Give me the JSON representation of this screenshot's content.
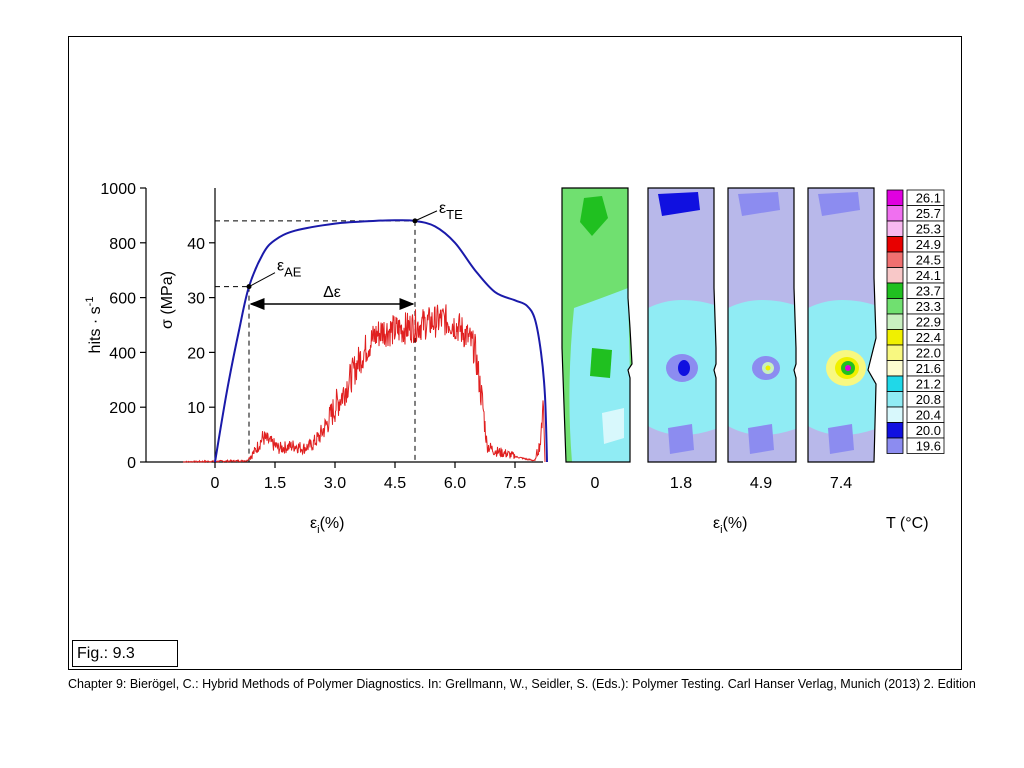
{
  "figure_label": "Fig.: 9.3",
  "caption": "Chapter 9: Bierögel, C.: Hybrid Methods of Polymer Diagnostics. In: Grellmann, W., Seidler, S. (Eds.): Polymer Testing. Carl Hanser Verlag, Munich (2013) 2. Edition",
  "chart_data": [
    {
      "type": "line",
      "x_axis": {
        "label_main": "ε",
        "label_sub": "i",
        "label_tail": "(%)",
        "ticks": [
          "0",
          "1.5",
          "3.0",
          "4.5",
          "6.0",
          "7.5"
        ],
        "range": [
          -1.5,
          8.0
        ]
      },
      "y_left": {
        "label": "hits · s",
        "label_sup": "-1",
        "ticks": [
          "0",
          "200",
          "400",
          "600",
          "800",
          "1000"
        ],
        "range": [
          0,
          1000
        ]
      },
      "y_inner": {
        "label": "σ (MPa)",
        "ticks": [
          "10",
          "20",
          "30",
          "40"
        ],
        "range": [
          0,
          50
        ]
      },
      "annotations": {
        "eps_ae": {
          "main": "ε",
          "sub": "AE",
          "x": 0.85,
          "y_mpa": 32
        },
        "eps_te": {
          "main": "ε",
          "sub": "TE",
          "x": 5.0,
          "y_mpa": 44
        },
        "delta_eps": "Δε"
      },
      "series": [
        {
          "axis": "sigma_mpa",
          "color": "#1a1aaa",
          "points": [
            [
              0,
              0
            ],
            [
              0.3,
              13
            ],
            [
              0.6,
              24
            ],
            [
              0.85,
              32
            ],
            [
              1.2,
              38
            ],
            [
              1.5,
              40.5
            ],
            [
              2.0,
              42.2
            ],
            [
              3.0,
              43.5
            ],
            [
              4.0,
              44.0
            ],
            [
              4.5,
              44.1
            ],
            [
              5.0,
              44.0
            ],
            [
              5.5,
              43.0
            ],
            [
              6.0,
              40.0
            ],
            [
              6.5,
              35.0
            ],
            [
              7.0,
              31.0
            ],
            [
              7.5,
              29.5
            ],
            [
              7.8,
              28.5
            ],
            [
              8.0,
              26.0
            ],
            [
              8.15,
              20.0
            ],
            [
              8.25,
              12.0
            ],
            [
              8.3,
              0
            ]
          ]
        },
        {
          "axis": "hits",
          "color": "#e02020",
          "points": [
            [
              -0.8,
              0
            ],
            [
              0.8,
              5
            ],
            [
              1.0,
              40
            ],
            [
              1.2,
              90
            ],
            [
              1.4,
              70
            ],
            [
              1.6,
              50
            ],
            [
              1.8,
              55
            ],
            [
              2.0,
              60
            ],
            [
              2.2,
              50
            ],
            [
              2.4,
              60
            ],
            [
              2.6,
              90
            ],
            [
              2.8,
              140
            ],
            [
              3.0,
              200
            ],
            [
              3.2,
              250
            ],
            [
              3.4,
              310
            ],
            [
              3.6,
              370
            ],
            [
              3.8,
              420
            ],
            [
              4.0,
              460
            ],
            [
              4.2,
              480
            ],
            [
              4.5,
              480
            ],
            [
              4.8,
              490
            ],
            [
              5.1,
              500
            ],
            [
              5.4,
              510
            ],
            [
              5.7,
              520
            ],
            [
              5.9,
              510
            ],
            [
              6.1,
              490
            ],
            [
              6.3,
              460
            ],
            [
              6.5,
              410
            ],
            [
              6.7,
              200
            ],
            [
              6.8,
              60
            ],
            [
              7.0,
              40
            ],
            [
              7.3,
              30
            ],
            [
              7.5,
              20
            ],
            [
              7.8,
              10
            ],
            [
              8.0,
              5
            ],
            [
              8.15,
              80
            ],
            [
              8.2,
              250
            ],
            [
              8.25,
              0
            ]
          ]
        }
      ]
    },
    {
      "type": "heatmap",
      "x_label_main": "ε",
      "x_label_sub": "i",
      "x_label_tail": "(%)",
      "specimens": [
        "0",
        "1.8",
        "4.9",
        "7.4"
      ],
      "background_color": "#b8b8ea",
      "legend": {
        "title": "T (°C)",
        "entries": [
          {
            "value": "26.1",
            "color": "#e000e0"
          },
          {
            "value": "25.7",
            "color": "#f070f0"
          },
          {
            "value": "25.3",
            "color": "#f8b8f0"
          },
          {
            "value": "24.9",
            "color": "#e80000"
          },
          {
            "value": "24.5",
            "color": "#f07070"
          },
          {
            "value": "24.1",
            "color": "#f8c8c8"
          },
          {
            "value": "23.7",
            "color": "#20c020"
          },
          {
            "value": "23.3",
            "color": "#70e070"
          },
          {
            "value": "22.9",
            "color": "#c8f0c0"
          },
          {
            "value": "22.4",
            "color": "#f0f000"
          },
          {
            "value": "22.0",
            "color": "#f8f880"
          },
          {
            "value": "21.6",
            "color": "#fcfcd0"
          },
          {
            "value": "21.2",
            "color": "#20d8e8"
          },
          {
            "value": "20.8",
            "color": "#90ecf4"
          },
          {
            "value": "20.4",
            "color": "#d8f8fc"
          },
          {
            "value": "20.0",
            "color": "#1010e0"
          },
          {
            "value": "19.6",
            "color": "#8c8cf0"
          }
        ]
      }
    }
  ]
}
